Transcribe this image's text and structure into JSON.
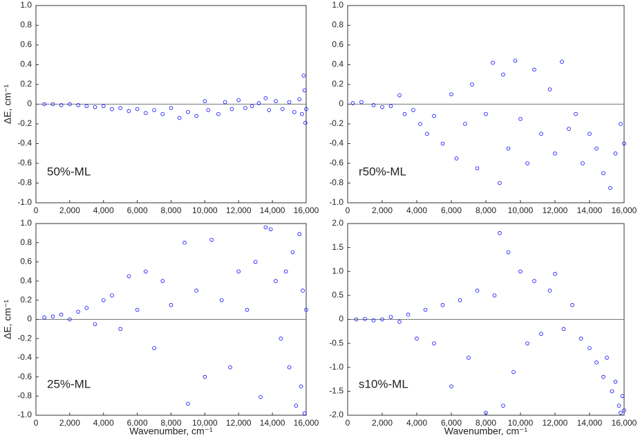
{
  "chart_data": [
    {
      "type": "scatter",
      "annotation": "50%-ML",
      "ylabel": "ΔE, cm⁻¹",
      "color": "#0000ff",
      "reference_line": 0,
      "xlim": [
        0,
        16000
      ],
      "ylim": [
        -1.0,
        1.0
      ],
      "xticks": [
        0,
        {
          "value": 2000,
          "label": "2,000"
        },
        {
          "value": 4000,
          "label": "4,000"
        },
        {
          "value": 6000,
          "label": "6,000"
        },
        {
          "value": 8000,
          "label": "8,000"
        },
        {
          "value": 10000,
          "label": "10,000"
        },
        {
          "value": 12000,
          "label": "12,000"
        },
        {
          "value": 14000,
          "label": "14,000"
        },
        {
          "value": 16000,
          "label": "16,000"
        }
      ],
      "yticks": [
        {
          "value": 1.0,
          "label": "1.0"
        },
        0.8,
        0.6,
        0.4,
        0.2,
        0,
        -0.2,
        -0.4,
        -0.6,
        -0.8,
        {
          "value": -1.0,
          "label": "-1.0"
        }
      ],
      "x": [
        500,
        1000,
        1500,
        2000,
        2500,
        3000,
        3500,
        4000,
        4500,
        5000,
        5500,
        6000,
        6500,
        7000,
        7500,
        8000,
        8500,
        9000,
        9500,
        10000,
        10200,
        10800,
        11200,
        11600,
        12000,
        12400,
        12800,
        13200,
        13600,
        13800,
        14200,
        14600,
        15000,
        15300,
        15600,
        15750,
        15850,
        15900,
        15950,
        16000
      ],
      "y": [
        0,
        0,
        -0.01,
        0,
        -0.01,
        -0.02,
        -0.03,
        -0.02,
        -0.05,
        -0.04,
        -0.07,
        -0.05,
        -0.09,
        -0.06,
        -0.1,
        -0.04,
        -0.14,
        -0.08,
        -0.12,
        0.03,
        -0.06,
        -0.1,
        0.02,
        -0.05,
        0.04,
        -0.04,
        -0.02,
        0.01,
        0.06,
        -0.06,
        0.03,
        -0.05,
        0.02,
        -0.08,
        0.05,
        -0.1,
        0.29,
        0.14,
        -0.19,
        -0.05
      ]
    },
    {
      "type": "scatter",
      "annotation": "r50%-ML",
      "color": "#0000ff",
      "reference_line": 0,
      "xlim": [
        0,
        16000
      ],
      "ylim": [
        -1.0,
        1.0
      ],
      "xticks": [
        0,
        {
          "value": 2000,
          "label": "2,000"
        },
        {
          "value": 4000,
          "label": "4,000"
        },
        {
          "value": 6000,
          "label": "6,000"
        },
        {
          "value": 8000,
          "label": "8,000"
        },
        {
          "value": 10000,
          "label": "10,000"
        },
        {
          "value": 12000,
          "label": "12,000"
        },
        {
          "value": 14000,
          "label": "14,000"
        },
        {
          "value": 16000,
          "label": "16,000"
        }
      ],
      "yticks": [
        {
          "value": 1.0,
          "label": "1.0"
        },
        0.8,
        0.6,
        0.4,
        0.2,
        0,
        -0.2,
        -0.4,
        -0.6,
        -0.8,
        {
          "value": -1.0,
          "label": "-1.0"
        }
      ],
      "x": [
        300,
        800,
        1500,
        2000,
        2500,
        3000,
        3300,
        3800,
        4200,
        4600,
        5000,
        5500,
        6000,
        6300,
        6800,
        7200,
        7500,
        8000,
        8400,
        8800,
        9000,
        9300,
        9700,
        10000,
        10400,
        10800,
        11200,
        11700,
        12000,
        12400,
        12800,
        13200,
        13600,
        14000,
        14400,
        14800,
        15200,
        15500,
        15800,
        16000
      ],
      "y": [
        0.01,
        0.02,
        -0.01,
        -0.03,
        -0.02,
        0.09,
        -0.1,
        -0.06,
        -0.2,
        -0.3,
        -0.12,
        -0.4,
        0.1,
        -0.55,
        -0.2,
        0.2,
        -0.65,
        -0.1,
        0.42,
        -0.8,
        0.3,
        -0.45,
        0.44,
        -0.15,
        -0.6,
        0.35,
        -0.3,
        0.15,
        -0.5,
        0.43,
        -0.25,
        -0.1,
        -0.6,
        -0.3,
        -0.45,
        -0.7,
        -0.85,
        -0.5,
        -0.2,
        -0.4
      ]
    },
    {
      "type": "scatter",
      "annotation": "25%-ML",
      "ylabel": "ΔE, cm⁻¹",
      "xlabel": "Wavenumber, cm⁻¹",
      "color": "#0000ff",
      "reference_line": 0,
      "xlim": [
        0,
        16000
      ],
      "ylim": [
        -1.0,
        1.0
      ],
      "xticks": [
        0,
        {
          "value": 2000,
          "label": "2,000"
        },
        {
          "value": 4000,
          "label": "4,000"
        },
        {
          "value": 6000,
          "label": "6,000"
        },
        {
          "value": 8000,
          "label": "8,000"
        },
        {
          "value": 10000,
          "label": "10,000"
        },
        {
          "value": 12000,
          "label": "12,000"
        },
        {
          "value": 14000,
          "label": "14,000"
        },
        {
          "value": 16000,
          "label": "16,000"
        }
      ],
      "yticks": [
        {
          "value": 1.0,
          "label": "1.0"
        },
        0.8,
        0.6,
        0.4,
        0.2,
        0,
        -0.2,
        -0.4,
        -0.6,
        -0.8,
        {
          "value": -1.0,
          "label": "-1.0"
        }
      ],
      "x": [
        500,
        1000,
        1500,
        2000,
        2500,
        3000,
        3500,
        4000,
        4500,
        5000,
        5500,
        6000,
        6500,
        7000,
        7500,
        8000,
        8800,
        9000,
        9500,
        10000,
        10400,
        11000,
        11500,
        12000,
        12500,
        13000,
        13300,
        13600,
        13900,
        14200,
        14500,
        14800,
        15000,
        15200,
        15400,
        15600,
        15700,
        15800,
        15900,
        16000
      ],
      "y": [
        0.02,
        0.03,
        0.05,
        0,
        0.08,
        0.12,
        -0.05,
        0.2,
        0.25,
        -0.1,
        0.45,
        0.1,
        0.5,
        -0.3,
        0.4,
        0.15,
        0.8,
        -0.88,
        0.3,
        -0.6,
        0.83,
        0.2,
        -0.5,
        0.5,
        0.1,
        0.6,
        -0.81,
        0.96,
        0.94,
        0.4,
        -0.2,
        0.5,
        -0.5,
        0.7,
        -0.9,
        0.89,
        -0.7,
        0.3,
        -0.98,
        0.1
      ]
    },
    {
      "type": "scatter",
      "annotation": "s10%-ML",
      "xlabel": "Wavenumber, cm⁻¹",
      "color": "#0000ff",
      "reference_line": 0,
      "xlim": [
        0,
        16000
      ],
      "ylim": [
        -2.0,
        2.0
      ],
      "xticks": [
        0,
        {
          "value": 2000,
          "label": "2,000"
        },
        {
          "value": 4000,
          "label": "4,000"
        },
        {
          "value": 6000,
          "label": "6,000"
        },
        {
          "value": 8000,
          "label": "8,000"
        },
        {
          "value": 10000,
          "label": "10,000"
        },
        {
          "value": 12000,
          "label": "12,000"
        },
        {
          "value": 14000,
          "label": "14,000"
        },
        {
          "value": 16000,
          "label": "16,000"
        }
      ],
      "yticks": [
        {
          "value": 2.0,
          "label": "2.0"
        },
        1.5,
        {
          "value": 1.0,
          "label": "1.0"
        },
        0.5,
        0,
        -0.5,
        {
          "value": -1.0,
          "label": "-1.0"
        },
        -1.5,
        {
          "value": -2.0,
          "label": "-2.0"
        }
      ],
      "x": [
        500,
        1000,
        1500,
        2000,
        2500,
        3000,
        3500,
        4000,
        4500,
        5000,
        5500,
        6000,
        6500,
        7000,
        7500,
        8000,
        8500,
        8800,
        9000,
        9300,
        9600,
        10000,
        10400,
        10800,
        11200,
        11700,
        12000,
        12500,
        13000,
        13500,
        14000,
        14400,
        14800,
        15000,
        15300,
        15500,
        15700,
        15800,
        15900,
        16000
      ],
      "y": [
        0,
        0.01,
        -0.02,
        0,
        0.05,
        -0.05,
        0.1,
        -0.4,
        0.2,
        -0.5,
        0.3,
        -1.4,
        0.4,
        -0.8,
        0.6,
        -1.95,
        0.5,
        1.8,
        -1.8,
        1.4,
        -1.1,
        1.0,
        -0.5,
        0.8,
        -0.3,
        0.6,
        0.95,
        -0.2,
        0.3,
        -0.4,
        -0.6,
        -0.9,
        -1.2,
        -0.8,
        -1.5,
        -1.3,
        -1.8,
        -1.95,
        -1.6,
        -1.9
      ]
    }
  ]
}
